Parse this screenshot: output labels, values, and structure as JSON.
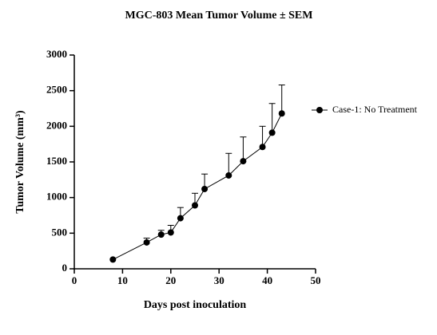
{
  "chart_data": {
    "type": "line",
    "title": "MGC-803 Mean Tumor Volume ± SEM",
    "x_label": "Days post inoculation",
    "y_label": "Tumor Volume (mm³)",
    "x": [
      8,
      15,
      18,
      20,
      22,
      25,
      27,
      32,
      35,
      39,
      41,
      43
    ],
    "series": [
      {
        "name": "Case-1: No Treatment",
        "color": "#000000",
        "values": [
          130,
          370,
          480,
          510,
          710,
          890,
          1120,
          1310,
          1510,
          1710,
          1910,
          2180
        ],
        "errors": [
          0,
          60,
          60,
          100,
          150,
          170,
          210,
          310,
          340,
          290,
          410,
          400
        ]
      }
    ],
    "xlim": [
      0,
      50
    ],
    "xticks": [
      0,
      10,
      20,
      30,
      40,
      50
    ],
    "ylim": [
      0,
      3000
    ],
    "yticks": [
      0,
      500,
      1000,
      1500,
      2000,
      2500,
      3000
    ],
    "grid": false,
    "legend": "right"
  }
}
